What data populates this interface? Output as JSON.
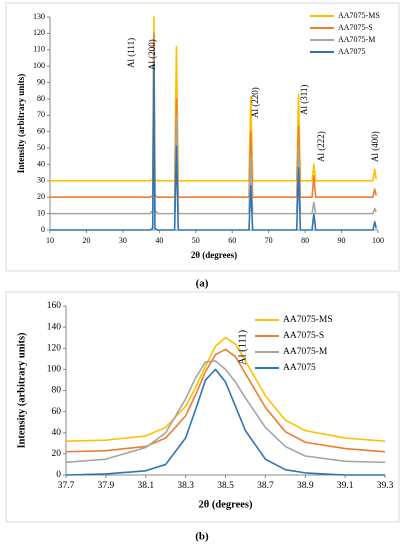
{
  "charts": [
    {
      "type": "line",
      "x": [
        10,
        37.5,
        38.2,
        38.5,
        38.8,
        39.5,
        44.2,
        44.7,
        45.2,
        64.6,
        65.1,
        65.6,
        77.7,
        78.2,
        78.7,
        81.9,
        82.4,
        82.9,
        98.6,
        99.1,
        99.5
      ],
      "series": [
        {
          "name": "AA7075-MS",
          "color": "#ffc000",
          "values": [
            30,
            30,
            31,
            130,
            31,
            30,
            30,
            112,
            30,
            30,
            81,
            30,
            30,
            83,
            30,
            30,
            40,
            30,
            30,
            37,
            31
          ]
        },
        {
          "name": "AA7075-S",
          "color": "#ed7d31",
          "values": [
            20,
            20,
            21,
            120,
            21,
            20,
            20,
            80,
            20,
            20,
            60,
            20,
            20,
            63,
            20,
            20,
            33,
            20,
            20,
            25,
            21
          ]
        },
        {
          "name": "AA7075-M",
          "color": "#a5a5a5",
          "values": [
            10,
            10,
            12,
            110,
            12,
            10,
            10,
            70,
            10,
            10,
            45,
            10,
            10,
            50,
            10,
            10,
            17,
            10,
            10,
            13,
            11
          ]
        },
        {
          "name": "AA7075",
          "color": "#2e75b6",
          "values": [
            0,
            0,
            1,
            101,
            1,
            0,
            0,
            51,
            0,
            0,
            27,
            0,
            0,
            38,
            0,
            0,
            10,
            0,
            0,
            5,
            1
          ]
        }
      ],
      "xlim": [
        10,
        100
      ],
      "xticks": [
        10,
        20,
        30,
        40,
        50,
        60,
        70,
        80,
        90,
        100
      ],
      "ylim": [
        0,
        130
      ],
      "yticks": [
        0,
        10,
        20,
        30,
        40,
        50,
        60,
        70,
        80,
        90,
        100,
        110,
        120,
        130
      ],
      "xlabel": "2θ (degrees)",
      "ylabel": "Intensity (arbitrary units)",
      "annotations": [
        "Al (111)",
        "Al (200)",
        "Al (220)",
        "Al (311)",
        "Al (222)",
        "Al (400)"
      ],
      "caption": "(a)",
      "legend": "top-right"
    },
    {
      "type": "line",
      "x": [
        37.7,
        37.9,
        38.1,
        38.2,
        38.3,
        38.35,
        38.4,
        38.45,
        38.5,
        38.55,
        38.6,
        38.7,
        38.8,
        38.9,
        39.1,
        39.3
      ],
      "series": [
        {
          "name": "AA7075-MS",
          "color": "#ffc000",
          "values": [
            32,
            33,
            37,
            45,
            65,
            83,
            103,
            122,
            130,
            124,
            108,
            75,
            52,
            42,
            35,
            32
          ]
        },
        {
          "name": "AA7075-S",
          "color": "#ed7d31",
          "values": [
            22,
            23,
            27,
            35,
            56,
            76,
            98,
            114,
            119,
            112,
            96,
            64,
            41,
            31,
            25,
            22
          ]
        },
        {
          "name": "AA7075-M",
          "color": "#a5a5a5",
          "values": [
            12,
            15,
            26,
            40,
            72,
            92,
            107,
            108,
            100,
            88,
            73,
            45,
            27,
            18,
            13,
            12
          ]
        },
        {
          "name": "AA7075",
          "color": "#2e75b6",
          "values": [
            0,
            1,
            4,
            10,
            35,
            62,
            90,
            100,
            88,
            65,
            42,
            15,
            5,
            2,
            0,
            0
          ]
        }
      ],
      "xlim": [
        37.7,
        39.3
      ],
      "xticks": [
        37.7,
        37.9,
        38.1,
        38.3,
        38.5,
        38.7,
        38.9,
        39.1,
        39.3
      ],
      "ylim": [
        0,
        160
      ],
      "yticks": [
        0,
        20,
        40,
        60,
        80,
        100,
        120,
        140,
        160
      ],
      "xlabel": "2θ (degrees)",
      "ylabel": "Intensity (arbitrary units)",
      "annotations": [
        "Al (111)"
      ],
      "caption": "(b)",
      "legend": "top-right"
    }
  ]
}
